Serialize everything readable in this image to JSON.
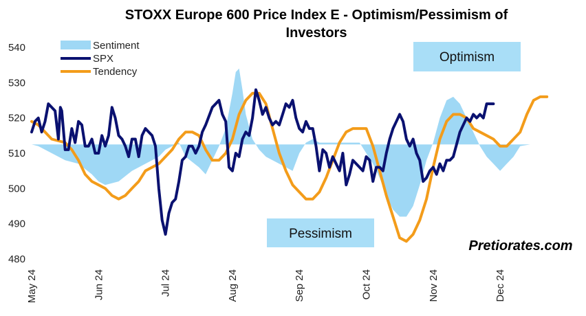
{
  "chart_data": {
    "type": "line",
    "title_line1": "STOXX Europe 600 Price Index E - Optimism/Pessimism of",
    "title_line2": "Investors",
    "ylim": [
      480,
      540
    ],
    "yticks": [
      480,
      490,
      500,
      510,
      520,
      530,
      540
    ],
    "x_ticks": [
      "May 24",
      "Jun 24",
      "Jul 24",
      "Aug 24",
      "Sep 24",
      "Oct 24",
      "Nov 24",
      "Dec 24"
    ],
    "baseline": 512.5,
    "legend": {
      "sentiment": "Sentiment",
      "spx": "SPX",
      "tendency": "Tendency"
    },
    "annotations": {
      "optimism": "Optimism",
      "pessimism": "Pessimism",
      "brand": "Pretiorates.com"
    },
    "colors": {
      "sentiment": "#9fd8f5",
      "spx": "#0a1170",
      "tendency": "#f39c1a",
      "box": "#a9def7"
    },
    "series": [
      {
        "name": "Sentiment",
        "type": "area",
        "points": [
          [
            0,
            512.5
          ],
          [
            0.1,
            512
          ],
          [
            0.3,
            510
          ],
          [
            0.5,
            508
          ],
          [
            0.7,
            507
          ],
          [
            0.9,
            504
          ],
          [
            1,
            502
          ],
          [
            1.1,
            501
          ],
          [
            1.3,
            502
          ],
          [
            1.5,
            505
          ],
          [
            1.7,
            507
          ],
          [
            1.9,
            509
          ],
          [
            2,
            511
          ],
          [
            2.1,
            512
          ],
          [
            2.2,
            513
          ],
          [
            2.3,
            509
          ],
          [
            2.5,
            506
          ],
          [
            2.6,
            504
          ],
          [
            2.7,
            508
          ],
          [
            2.8,
            512
          ],
          [
            2.9,
            517
          ],
          [
            3,
            527
          ],
          [
            3.05,
            533
          ],
          [
            3.1,
            534
          ],
          [
            3.15,
            528
          ],
          [
            3.2,
            521
          ],
          [
            3.3,
            514
          ],
          [
            3.4,
            511
          ],
          [
            3.5,
            509
          ],
          [
            3.7,
            507
          ],
          [
            3.9,
            505
          ],
          [
            4,
            510
          ],
          [
            4.1,
            513
          ],
          [
            4.2,
            514
          ],
          [
            4.3,
            513
          ],
          [
            4.5,
            513
          ],
          [
            4.7,
            513
          ],
          [
            4.9,
            513
          ],
          [
            5,
            510
          ],
          [
            5.1,
            507
          ],
          [
            5.2,
            503
          ],
          [
            5.3,
            498
          ],
          [
            5.4,
            494
          ],
          [
            5.5,
            492
          ],
          [
            5.6,
            492
          ],
          [
            5.7,
            495
          ],
          [
            5.8,
            501
          ],
          [
            5.9,
            508
          ],
          [
            6,
            513
          ],
          [
            6.1,
            520
          ],
          [
            6.2,
            525
          ],
          [
            6.3,
            526
          ],
          [
            6.4,
            524
          ],
          [
            6.5,
            520
          ],
          [
            6.6,
            516
          ],
          [
            6.7,
            512
          ],
          [
            6.8,
            509
          ],
          [
            6.9,
            507
          ],
          [
            7,
            505
          ],
          [
            7.1,
            507
          ],
          [
            7.2,
            509
          ],
          [
            7.3,
            512
          ],
          [
            7.45,
            512.5
          ]
        ]
      },
      {
        "name": "SPX",
        "type": "line",
        "points": [
          [
            0,
            516
          ],
          [
            0.05,
            519
          ],
          [
            0.1,
            520
          ],
          [
            0.15,
            516
          ],
          [
            0.2,
            519
          ],
          [
            0.25,
            524
          ],
          [
            0.3,
            523
          ],
          [
            0.35,
            522
          ],
          [
            0.4,
            514
          ],
          [
            0.43,
            523
          ],
          [
            0.45,
            522
          ],
          [
            0.5,
            511
          ],
          [
            0.55,
            511
          ],
          [
            0.6,
            517
          ],
          [
            0.65,
            513
          ],
          [
            0.7,
            519
          ],
          [
            0.75,
            518
          ],
          [
            0.8,
            512
          ],
          [
            0.85,
            512
          ],
          [
            0.9,
            514
          ],
          [
            0.95,
            510
          ],
          [
            1,
            510
          ],
          [
            1.05,
            515
          ],
          [
            1.1,
            512
          ],
          [
            1.15,
            515
          ],
          [
            1.2,
            523
          ],
          [
            1.25,
            520
          ],
          [
            1.3,
            515
          ],
          [
            1.35,
            514
          ],
          [
            1.4,
            512
          ],
          [
            1.45,
            509
          ],
          [
            1.5,
            514
          ],
          [
            1.55,
            514
          ],
          [
            1.6,
            509
          ],
          [
            1.65,
            515
          ],
          [
            1.7,
            517
          ],
          [
            1.8,
            515
          ],
          [
            1.85,
            512
          ],
          [
            1.9,
            500
          ],
          [
            1.95,
            491
          ],
          [
            2,
            487
          ],
          [
            2.05,
            493
          ],
          [
            2.1,
            496
          ],
          [
            2.15,
            497
          ],
          [
            2.2,
            502
          ],
          [
            2.25,
            508
          ],
          [
            2.3,
            509
          ],
          [
            2.35,
            512
          ],
          [
            2.4,
            512
          ],
          [
            2.45,
            510
          ],
          [
            2.5,
            512
          ],
          [
            2.55,
            516
          ],
          [
            2.6,
            518
          ],
          [
            2.7,
            523
          ],
          [
            2.75,
            524
          ],
          [
            2.8,
            525
          ],
          [
            2.85,
            521
          ],
          [
            2.9,
            519
          ],
          [
            2.95,
            506
          ],
          [
            3,
            505
          ],
          [
            3.05,
            510
          ],
          [
            3.1,
            509
          ],
          [
            3.15,
            514
          ],
          [
            3.2,
            516
          ],
          [
            3.25,
            515
          ],
          [
            3.3,
            520
          ],
          [
            3.35,
            528
          ],
          [
            3.4,
            525
          ],
          [
            3.45,
            521
          ],
          [
            3.5,
            523
          ],
          [
            3.55,
            520
          ],
          [
            3.6,
            518
          ],
          [
            3.65,
            519
          ],
          [
            3.7,
            518
          ],
          [
            3.75,
            521
          ],
          [
            3.8,
            524
          ],
          [
            3.85,
            523
          ],
          [
            3.9,
            525
          ],
          [
            3.95,
            520
          ],
          [
            4,
            517
          ],
          [
            4.05,
            516
          ],
          [
            4.1,
            519
          ],
          [
            4.15,
            517
          ],
          [
            4.2,
            517
          ],
          [
            4.25,
            512
          ],
          [
            4.3,
            505
          ],
          [
            4.35,
            511
          ],
          [
            4.4,
            510
          ],
          [
            4.45,
            506
          ],
          [
            4.5,
            509
          ],
          [
            4.55,
            507
          ],
          [
            4.6,
            505
          ],
          [
            4.65,
            510
          ],
          [
            4.7,
            501
          ],
          [
            4.75,
            504
          ],
          [
            4.8,
            508
          ],
          [
            4.85,
            507
          ],
          [
            4.9,
            506
          ],
          [
            4.95,
            505
          ],
          [
            5,
            509
          ],
          [
            5.05,
            508
          ],
          [
            5.1,
            502
          ],
          [
            5.15,
            506
          ],
          [
            5.2,
            506
          ],
          [
            5.25,
            505
          ],
          [
            5.3,
            510
          ],
          [
            5.35,
            514
          ],
          [
            5.4,
            517
          ],
          [
            5.45,
            519
          ],
          [
            5.5,
            521
          ],
          [
            5.55,
            519
          ],
          [
            5.6,
            514
          ],
          [
            5.65,
            512
          ],
          [
            5.7,
            514
          ],
          [
            5.75,
            510
          ],
          [
            5.8,
            508
          ],
          [
            5.85,
            502
          ],
          [
            5.9,
            503
          ],
          [
            5.95,
            505
          ],
          [
            6,
            506
          ],
          [
            6.05,
            504
          ],
          [
            6.1,
            507
          ],
          [
            6.15,
            505
          ],
          [
            6.2,
            508
          ],
          [
            6.25,
            508
          ],
          [
            6.3,
            509
          ],
          [
            6.4,
            516
          ],
          [
            6.5,
            520
          ],
          [
            6.55,
            519
          ],
          [
            6.6,
            521
          ],
          [
            6.65,
            520
          ],
          [
            6.7,
            521
          ],
          [
            6.75,
            520
          ],
          [
            6.8,
            524
          ],
          [
            6.85,
            524
          ],
          [
            6.9,
            524
          ]
        ]
      },
      {
        "name": "Tendency",
        "type": "line",
        "points": [
          [
            0,
            519
          ],
          [
            0.1,
            518
          ],
          [
            0.2,
            516
          ],
          [
            0.3,
            514
          ],
          [
            0.4,
            513.5
          ],
          [
            0.5,
            513
          ],
          [
            0.6,
            511
          ],
          [
            0.7,
            508
          ],
          [
            0.8,
            504
          ],
          [
            0.9,
            502
          ],
          [
            1,
            501
          ],
          [
            1.1,
            500
          ],
          [
            1.2,
            498
          ],
          [
            1.3,
            497
          ],
          [
            1.4,
            498
          ],
          [
            1.5,
            500
          ],
          [
            1.6,
            502
          ],
          [
            1.7,
            505
          ],
          [
            1.8,
            506
          ],
          [
            1.9,
            507
          ],
          [
            2,
            509
          ],
          [
            2.1,
            511
          ],
          [
            2.2,
            514
          ],
          [
            2.3,
            516
          ],
          [
            2.4,
            516
          ],
          [
            2.5,
            515
          ],
          [
            2.6,
            511
          ],
          [
            2.7,
            508
          ],
          [
            2.8,
            508
          ],
          [
            2.9,
            510
          ],
          [
            3,
            514
          ],
          [
            3.1,
            521
          ],
          [
            3.2,
            525
          ],
          [
            3.3,
            527
          ],
          [
            3.4,
            527
          ],
          [
            3.5,
            524
          ],
          [
            3.6,
            517
          ],
          [
            3.7,
            510
          ],
          [
            3.8,
            505
          ],
          [
            3.9,
            501
          ],
          [
            4,
            499
          ],
          [
            4.1,
            497
          ],
          [
            4.2,
            497
          ],
          [
            4.3,
            499
          ],
          [
            4.4,
            503
          ],
          [
            4.5,
            508
          ],
          [
            4.6,
            513
          ],
          [
            4.7,
            516
          ],
          [
            4.8,
            517
          ],
          [
            4.9,
            517
          ],
          [
            5,
            517
          ],
          [
            5.1,
            512
          ],
          [
            5.2,
            505
          ],
          [
            5.3,
            498
          ],
          [
            5.4,
            492
          ],
          [
            5.5,
            486
          ],
          [
            5.6,
            485
          ],
          [
            5.7,
            487
          ],
          [
            5.8,
            491
          ],
          [
            5.9,
            497
          ],
          [
            6,
            506
          ],
          [
            6.1,
            514
          ],
          [
            6.2,
            519
          ],
          [
            6.3,
            521
          ],
          [
            6.4,
            521
          ],
          [
            6.5,
            520
          ],
          [
            6.6,
            517
          ],
          [
            6.7,
            516
          ],
          [
            6.8,
            515
          ],
          [
            6.9,
            514
          ],
          [
            7,
            512
          ],
          [
            7.1,
            512
          ],
          [
            7.2,
            514
          ],
          [
            7.3,
            516
          ],
          [
            7.4,
            521
          ],
          [
            7.5,
            525
          ],
          [
            7.6,
            526
          ],
          [
            7.7,
            526
          ]
        ]
      }
    ]
  }
}
